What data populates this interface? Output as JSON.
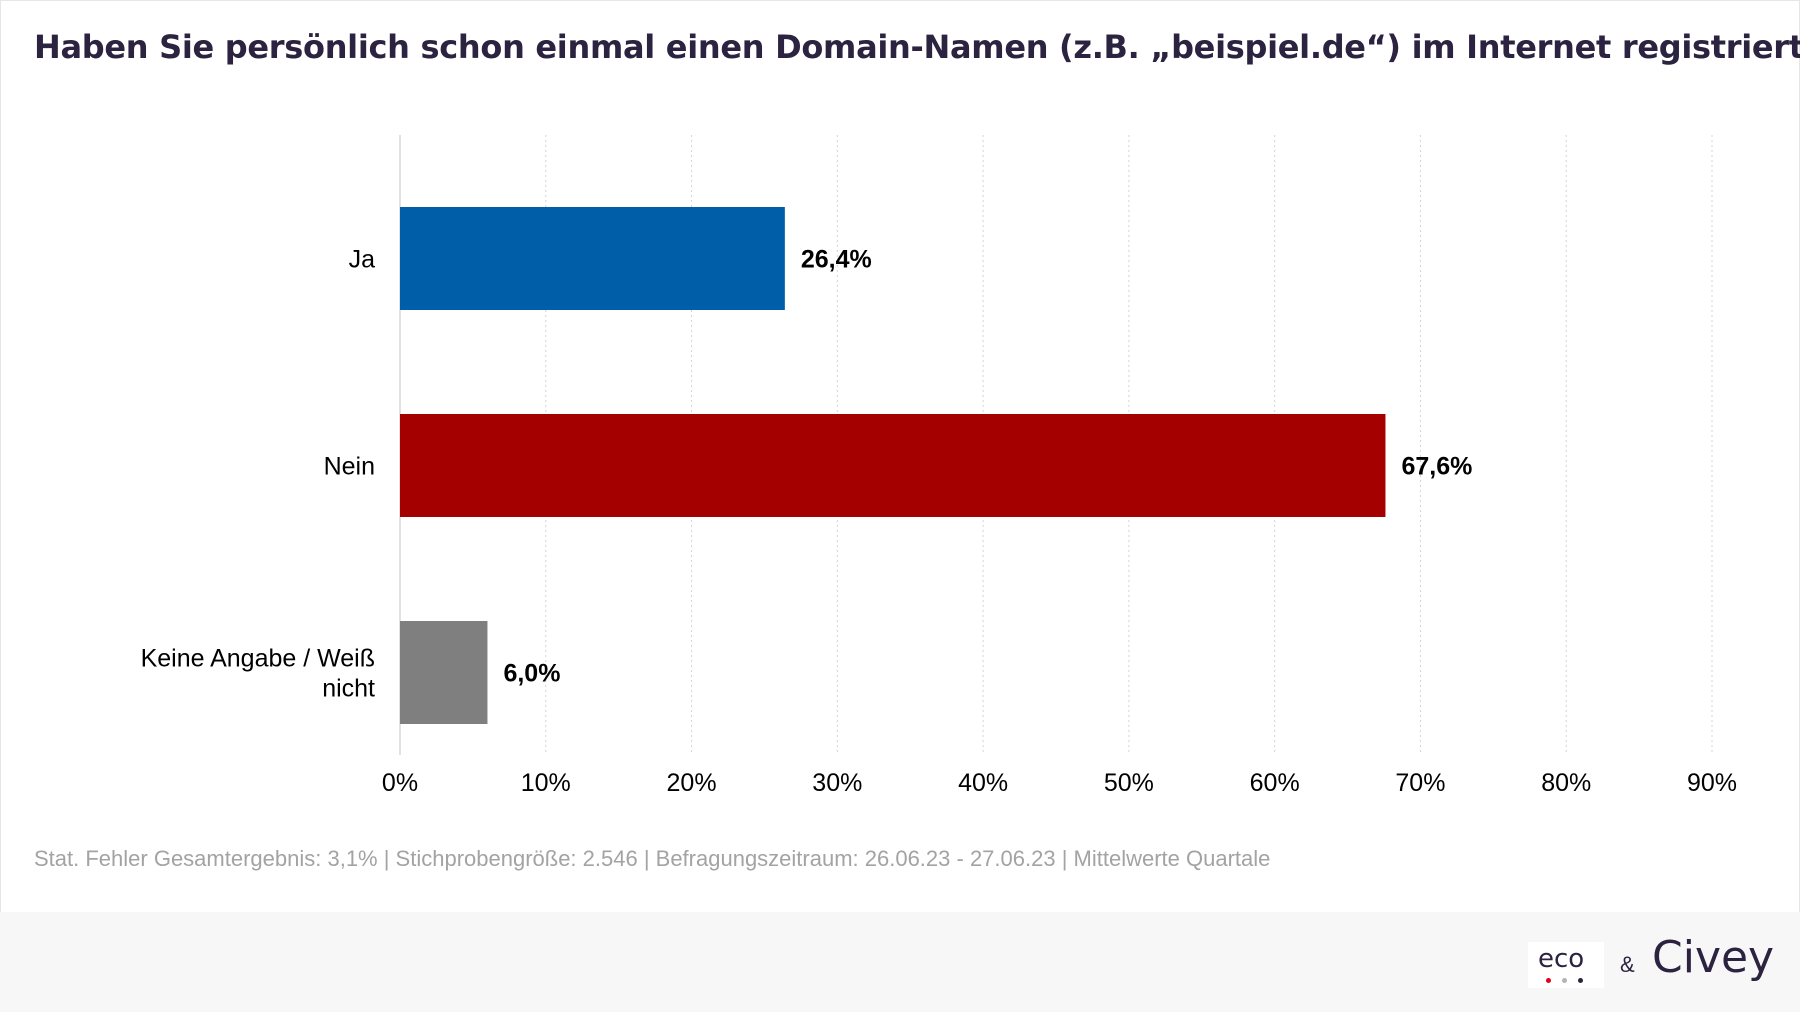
{
  "title": "Haben Sie persönlich schon einmal einen Domain-Namen (z.B. „beispiel.de“) im Internet registriert?",
  "chart_data": {
    "type": "bar",
    "orientation": "horizontal",
    "categories": [
      "Ja",
      "Nein",
      "Keine Angabe / Weiß nicht"
    ],
    "values": [
      26.4,
      67.6,
      6.0
    ],
    "value_labels": [
      "26,4%",
      "67,6%",
      "6,0%"
    ],
    "colors": [
      "#005ea8",
      "#a50000",
      "#7f7f7f"
    ],
    "xlim": [
      0,
      90
    ],
    "x_ticks": [
      0,
      10,
      20,
      30,
      40,
      50,
      60,
      70,
      80,
      90
    ],
    "x_tick_labels": [
      "0%",
      "10%",
      "20%",
      "30%",
      "40%",
      "50%",
      "60%",
      "70%",
      "80%",
      "90%"
    ],
    "grid": "vertical-dotted",
    "legend": "none"
  },
  "footnote": "Stat. Fehler Gesamtergebnis: 3,1% | Stichprobengröße: 2.546 | Befragungszeitraum: 26.06.23 - 27.06.23 | Mittelwerte Quartale",
  "footer": {
    "eco_logo": "eco",
    "ampersand": "&",
    "civey_logo": "Civey",
    "eco_dot_colors": [
      "#e2001a",
      "#b3b3b3",
      "#2b2340"
    ]
  }
}
